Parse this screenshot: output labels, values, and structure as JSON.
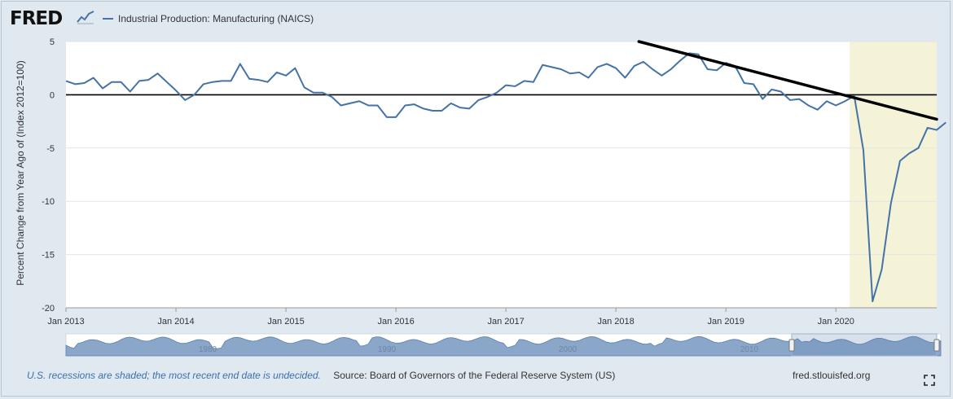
{
  "header": {
    "logo_text": "FRED",
    "legend_label": "Industrial Production: Manufacturing (NAICS)"
  },
  "colors": {
    "series": "#4572a7",
    "recession": "#f5f3d7",
    "trendline": "#000000",
    "navigator_fill": "#8aa6c8"
  },
  "chart_data": {
    "type": "line",
    "title": "",
    "ylabel": "Percent Change from Year Ago of (Index 2012=100)",
    "xlabel": "",
    "ylim": [
      -20,
      5
    ],
    "yticks": [
      5,
      0,
      -5,
      -10,
      -15,
      -20
    ],
    "xlim": [
      0,
      95
    ],
    "xticks": [
      {
        "pos": 0,
        "label": "Jan 2013"
      },
      {
        "pos": 12,
        "label": "Jan 2014"
      },
      {
        "pos": 24,
        "label": "Jan 2015"
      },
      {
        "pos": 36,
        "label": "Jan 2016"
      },
      {
        "pos": 48,
        "label": "Jan 2017"
      },
      {
        "pos": 60,
        "label": "Jan 2018"
      },
      {
        "pos": 72,
        "label": "Jan 2019"
      },
      {
        "pos": 84,
        "label": "Jan 2020"
      }
    ],
    "zero_line": 0,
    "recession": {
      "start": 85.5,
      "end": 95,
      "label": "2020 recession"
    },
    "trendline": {
      "x1": 62.5,
      "y1": 5.0,
      "x2": 95,
      "y2": -2.3
    },
    "series": [
      {
        "name": "Industrial Production: Manufacturing (NAICS)",
        "values": [
          1.3,
          1.0,
          1.1,
          1.6,
          0.6,
          1.2,
          1.2,
          0.3,
          1.3,
          1.4,
          2.0,
          1.2,
          0.4,
          -0.5,
          0.0,
          1.0,
          1.2,
          1.3,
          1.3,
          2.9,
          1.5,
          1.4,
          1.2,
          2.1,
          1.8,
          2.5,
          0.7,
          0.2,
          0.2,
          -0.2,
          -1.0,
          -0.8,
          -0.6,
          -1.0,
          -1.0,
          -2.1,
          -2.1,
          -1.0,
          -0.9,
          -1.3,
          -1.5,
          -1.5,
          -0.8,
          -1.2,
          -1.3,
          -0.5,
          -0.2,
          0.2,
          0.9,
          0.8,
          1.3,
          1.2,
          2.8,
          2.6,
          2.4,
          2.0,
          2.1,
          1.6,
          2.6,
          2.9,
          2.5,
          1.6,
          2.7,
          3.1,
          2.4,
          1.8,
          2.4,
          3.2,
          3.9,
          3.8,
          2.4,
          2.3,
          3.0,
          2.7,
          1.1,
          1.0,
          -0.4,
          0.5,
          0.3,
          -0.5,
          -0.4,
          -1.0,
          -1.4,
          -0.6,
          -1.0,
          -0.6,
          -0.1,
          -5.2,
          -19.4,
          -16.4,
          -10.2,
          -6.2,
          -5.5,
          -5.0,
          -3.1,
          -3.3,
          -2.6
        ]
      }
    ],
    "navigator": {
      "labels": [
        "1980",
        "1990",
        "2000",
        "2010"
      ]
    }
  },
  "footer": {
    "recession_note": "U.S. recessions are shaded; the most recent end date is undecided.",
    "source": "Source: Board of Governors of the Federal Reserve System (US)",
    "site": "fred.stlouisfed.org"
  }
}
